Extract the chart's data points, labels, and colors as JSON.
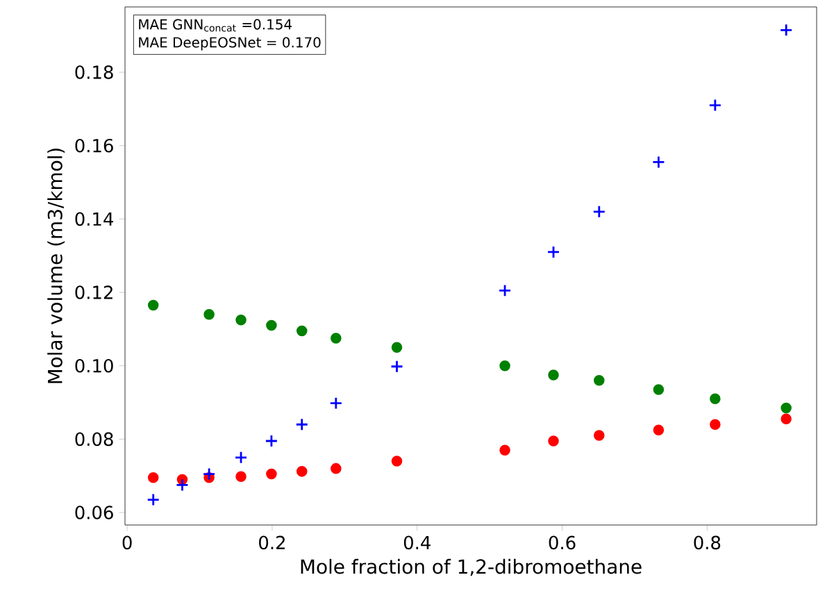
{
  "chart_data": {
    "type": "scatter",
    "xlabel": "Mole fraction of 1,2-dibromoethane",
    "ylabel": "Molar volume (m3/kmol)",
    "x": [
      0.036,
      0.076,
      0.113,
      0.157,
      0.199,
      0.241,
      0.288,
      0.372,
      0.521,
      0.588,
      0.651,
      0.733,
      0.811,
      0.909
    ],
    "series": [
      {
        "color": "#008000",
        "marker": "circle",
        "values": [
          0.1165,
          null,
          0.114,
          0.1125,
          0.111,
          0.1095,
          0.1075,
          0.105,
          0.1,
          0.0975,
          0.096,
          0.0935,
          0.091,
          0.0885
        ]
      },
      {
        "color": "#ff0000",
        "marker": "circle",
        "values": [
          0.0695,
          0.069,
          0.0695,
          0.0698,
          0.0705,
          0.0712,
          0.072,
          0.074,
          0.077,
          0.0795,
          0.081,
          0.0825,
          0.084,
          0.0855
        ]
      },
      {
        "color": "#0000ff",
        "marker": "cross",
        "values": [
          0.0635,
          0.0675,
          0.0705,
          0.075,
          0.0795,
          0.084,
          0.0898,
          0.0998,
          0.1205,
          0.131,
          0.142,
          0.1555,
          0.171,
          0.1915
        ]
      }
    ],
    "annotations": [
      "MAE GNN$_{concat}$ =0.154",
      "MAE DeepEOSNet = 0.170"
    ],
    "xlim": [
      -0.003,
      0.951
    ],
    "ylim": [
      0.0566,
      0.1978
    ],
    "xticks": [
      0,
      0.2,
      0.4,
      0.6,
      0.8
    ],
    "yticks": [
      0.06,
      0.08,
      {
        "value": 0.1,
        "label": "0.10"
      },
      0.12,
      0.14,
      0.16,
      0.18
    ],
    "grid": false
  }
}
